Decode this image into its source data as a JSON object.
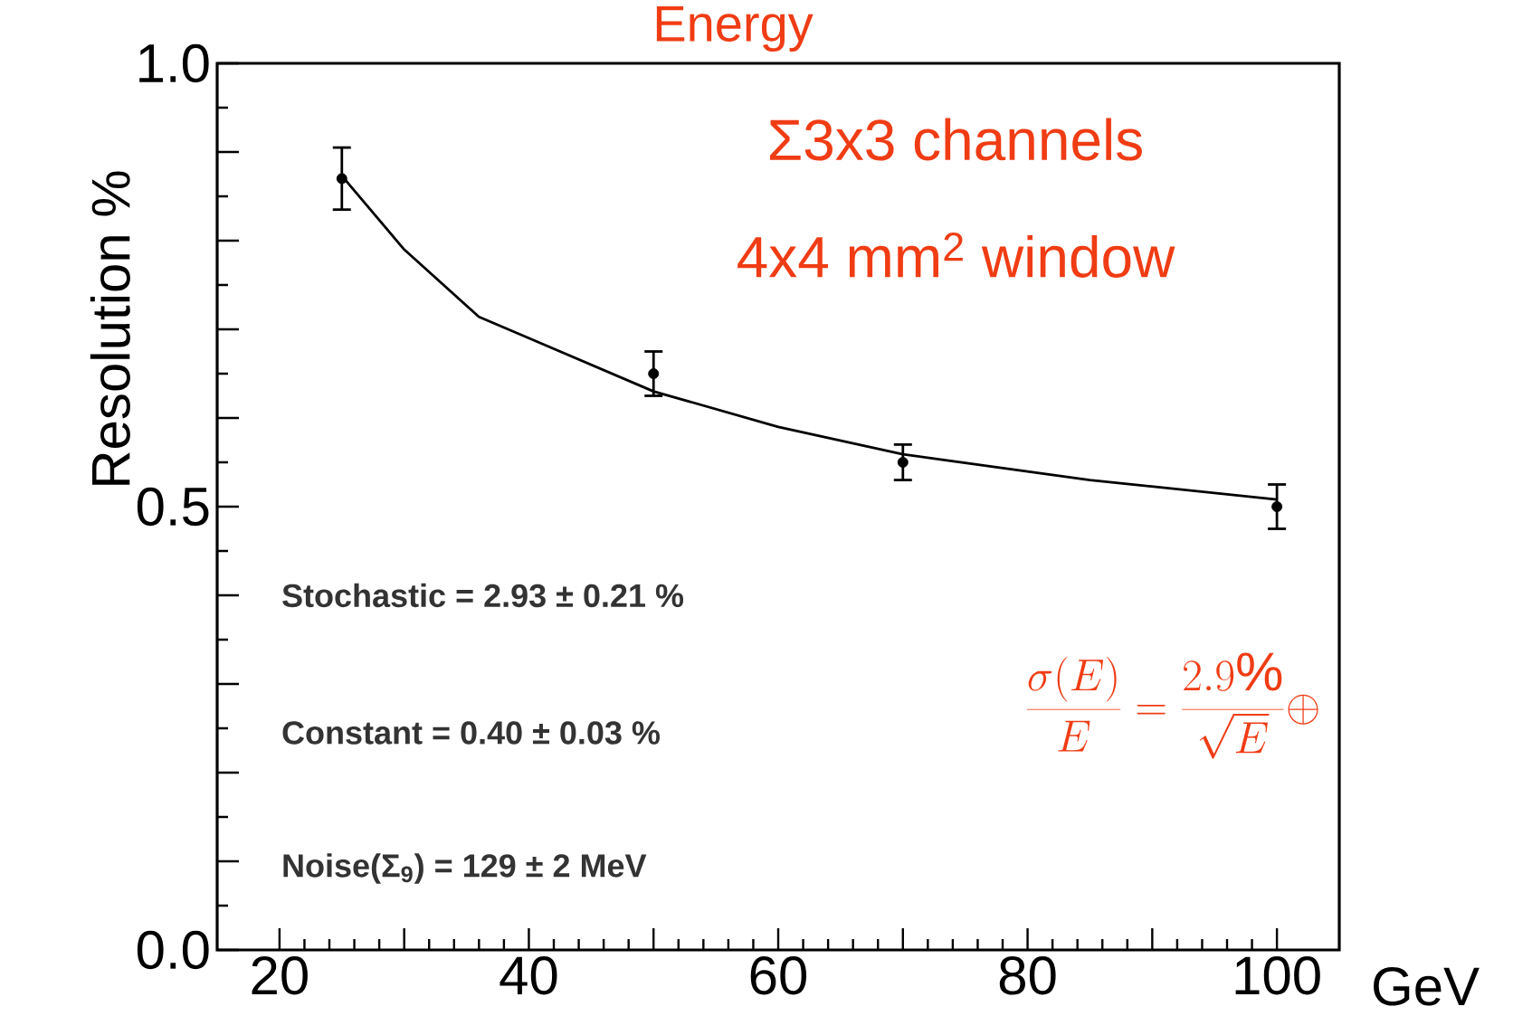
{
  "chart_data": {
    "type": "scatter",
    "title": "Energy",
    "xlabel": "GeV",
    "ylabel": "Resolution %",
    "xlim": [
      15,
      105
    ],
    "ylim": [
      0,
      1
    ],
    "xticks": [
      20,
      {
        "value": 30,
        "label": null
      },
      40,
      {
        "value": 50,
        "label": null
      },
      60,
      {
        "value": 70,
        "label": null
      },
      80,
      {
        "value": 90,
        "label": null
      },
      100
    ],
    "yticks": [
      {
        "value": 0,
        "label": "0.0"
      },
      {
        "value": 0.1,
        "label": null
      },
      {
        "value": 0.2,
        "label": null
      },
      {
        "value": 0.3,
        "label": null
      },
      {
        "value": 0.4,
        "label": null
      },
      {
        "value": 0.5,
        "label": "0.5"
      },
      {
        "value": 0.6,
        "label": null
      },
      {
        "value": 0.7,
        "label": null
      },
      {
        "value": 0.8,
        "label": null
      },
      {
        "value": 0.9,
        "label": null
      },
      {
        "value": 1.0,
        "label": "1.0"
      }
    ],
    "series": [
      {
        "color": "#000000",
        "marker": "circle",
        "x": [
          25,
          50,
          70,
          100
        ],
        "values": [
          0.87,
          0.65,
          0.55,
          0.5
        ],
        "errors": [
          0.035,
          0.025,
          0.02,
          0.025
        ]
      },
      {
        "type": "line",
        "color": "#000000",
        "marker": "none",
        "x": [
          25,
          30,
          36,
          40,
          50,
          60,
          70,
          85,
          100
        ],
        "values": [
          0.873,
          0.79,
          0.714,
          0.69,
          0.63,
          0.59,
          0.559,
          0.53,
          0.508
        ]
      }
    ],
    "annotations": [
      "Σ3x3 channels",
      "4x4 mm$^{2}$ window",
      "Stochastic = 2.93  ± 0.21 %",
      "Constant = 0.40  ± 0.03 %",
      "Noise(Σ$_{9}$) =  129 ± 2 MeV",
      "\\frac{\\sigma(E)}{E} = \\frac{2.9\\%}{\\sqrt{E}} \\oplus"
    ]
  }
}
